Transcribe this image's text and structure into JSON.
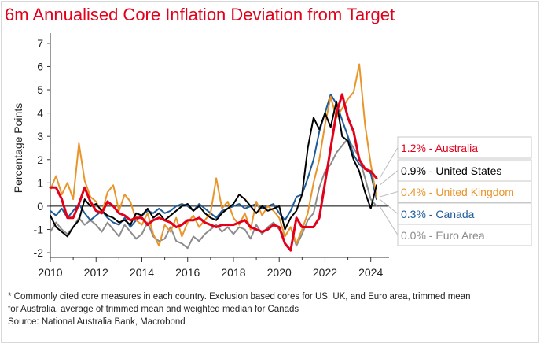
{
  "title": "6m Annualised Core Inflation Deviation from Target",
  "footnotes": {
    "line1": "*  Commonly cited core measures in each country. Exclusion based cores for US, UK, and Euro area, trimmed mean",
    "line2": "for Australia, average of trimmed mean and weighted median for Canads",
    "line3": "Source: National Australia Bank, Macrobond"
  },
  "chart_data": {
    "type": "line",
    "title": "6m Annualised Core Inflation Deviation from Target",
    "xlabel": "",
    "ylabel": "Percentage Points",
    "xlim": [
      2010,
      2024.8
    ],
    "ylim": [
      -2.2,
      7.3
    ],
    "xticks": [
      2010,
      2012,
      2014,
      2016,
      2018,
      2020,
      2022,
      2024
    ],
    "yticks": [
      -2,
      -1,
      0,
      1,
      2,
      3,
      4,
      5,
      6,
      7
    ],
    "grid": false,
    "legend": "right",
    "series": [
      {
        "name": "Euro Area",
        "label": "0.0% - Euro Area",
        "color": "#8c8c8c",
        "x": [
          2010.0,
          2010.25,
          2010.5,
          2010.75,
          2011.0,
          2011.25,
          2011.5,
          2011.75,
          2012.0,
          2012.25,
          2012.5,
          2012.75,
          2013.0,
          2013.25,
          2013.5,
          2013.75,
          2014.0,
          2014.25,
          2014.5,
          2014.75,
          2015.0,
          2015.25,
          2015.5,
          2015.75,
          2016.0,
          2016.25,
          2016.5,
          2016.75,
          2017.0,
          2017.25,
          2017.5,
          2017.75,
          2018.0,
          2018.25,
          2018.5,
          2018.75,
          2019.0,
          2019.25,
          2019.5,
          2019.75,
          2020.0,
          2020.25,
          2020.5,
          2020.75,
          2021.0,
          2021.25,
          2021.5,
          2021.75,
          2022.0,
          2022.25,
          2022.5,
          2022.75,
          2023.0,
          2023.25,
          2023.5,
          2023.75,
          2024.0,
          2024.25
        ],
        "y": [
          -1.1,
          -0.7,
          -1.0,
          -1.2,
          -0.9,
          -0.5,
          -0.8,
          -0.6,
          -0.8,
          -1.1,
          -0.7,
          -1.0,
          -1.3,
          -0.8,
          -1.1,
          -1.4,
          -1.2,
          -0.7,
          -1.3,
          -1.5,
          -1.4,
          -0.9,
          -1.5,
          -1.6,
          -1.8,
          -1.3,
          -1.5,
          -1.2,
          -1.0,
          -0.8,
          -1.1,
          -0.9,
          -1.2,
          -0.9,
          -1.0,
          -1.4,
          -0.8,
          -1.2,
          -0.9,
          -0.7,
          -1.0,
          -1.3,
          -0.9,
          -1.7,
          -1.2,
          -0.6,
          -0.3,
          0.8,
          1.5,
          1.8,
          2.3,
          2.6,
          2.9,
          2.5,
          2.1,
          1.2,
          0.3,
          0.0
        ]
      },
      {
        "name": "Canada",
        "label": "0.3% - Canada",
        "color": "#1f5c99",
        "x": [
          2010.0,
          2010.25,
          2010.5,
          2010.75,
          2011.0,
          2011.25,
          2011.5,
          2011.75,
          2012.0,
          2012.25,
          2012.5,
          2012.75,
          2013.0,
          2013.25,
          2013.5,
          2013.75,
          2014.0,
          2014.25,
          2014.5,
          2014.75,
          2015.0,
          2015.25,
          2015.5,
          2015.75,
          2016.0,
          2016.25,
          2016.5,
          2016.75,
          2017.0,
          2017.25,
          2017.5,
          2017.75,
          2018.0,
          2018.25,
          2018.5,
          2018.75,
          2019.0,
          2019.25,
          2019.5,
          2019.75,
          2020.0,
          2020.25,
          2020.5,
          2020.75,
          2021.0,
          2021.25,
          2021.5,
          2021.75,
          2022.0,
          2022.25,
          2022.5,
          2022.75,
          2023.0,
          2023.25,
          2023.5,
          2023.75,
          2024.0,
          2024.25
        ],
        "y": [
          -0.2,
          -0.4,
          -0.1,
          -0.5,
          -0.2,
          0.1,
          -0.3,
          -0.6,
          -0.4,
          -0.2,
          -0.5,
          -0.7,
          -0.8,
          -0.5,
          -0.9,
          -0.6,
          -0.4,
          -0.2,
          -0.3,
          -0.1,
          -0.3,
          -0.2,
          0.0,
          0.1,
          0.0,
          -0.2,
          0.1,
          -0.1,
          -0.3,
          -0.5,
          -0.2,
          -0.1,
          0.0,
          0.1,
          -0.1,
          0.0,
          0.1,
          -0.1,
          0.0,
          0.1,
          -0.3,
          -0.6,
          -0.2,
          0.4,
          0.5,
          1.2,
          2.0,
          3.2,
          4.0,
          4.8,
          4.4,
          3.7,
          3.0,
          2.2,
          1.8,
          1.6,
          1.4,
          0.3
        ]
      },
      {
        "name": "United Kingdom",
        "label": "0.4% - United Kingdom",
        "color": "#e8952a",
        "x": [
          2010.0,
          2010.25,
          2010.5,
          2010.75,
          2011.0,
          2011.25,
          2011.5,
          2011.75,
          2012.0,
          2012.25,
          2012.5,
          2012.75,
          2013.0,
          2013.25,
          2013.5,
          2013.75,
          2014.0,
          2014.25,
          2014.5,
          2014.75,
          2015.0,
          2015.25,
          2015.5,
          2015.75,
          2016.0,
          2016.25,
          2016.5,
          2016.75,
          2017.0,
          2017.25,
          2017.5,
          2017.75,
          2018.0,
          2018.25,
          2018.5,
          2018.75,
          2019.0,
          2019.25,
          2019.5,
          2019.75,
          2020.0,
          2020.25,
          2020.5,
          2020.75,
          2021.0,
          2021.25,
          2021.5,
          2021.75,
          2022.0,
          2022.25,
          2022.5,
          2022.75,
          2023.0,
          2023.25,
          2023.5,
          2023.75,
          2024.0,
          2024.25
        ],
        "y": [
          0.7,
          1.3,
          0.5,
          1.0,
          0.3,
          2.7,
          1.1,
          0.4,
          0.2,
          -0.3,
          0.6,
          0.9,
          -0.2,
          0.5,
          0.2,
          -0.6,
          -0.8,
          -0.3,
          -1.2,
          -1.7,
          -0.8,
          -1.1,
          -0.5,
          -1.3,
          -0.7,
          -0.4,
          -0.9,
          -0.6,
          -0.3,
          1.2,
          -0.1,
          0.2,
          -0.5,
          -0.8,
          -0.3,
          -1.0,
          0.2,
          -0.4,
          0.0,
          -0.2,
          -0.5,
          -1.3,
          -0.9,
          -1.6,
          -1.0,
          -0.3,
          1.0,
          2.0,
          3.5,
          4.7,
          3.8,
          4.2,
          4.6,
          4.9,
          6.1,
          3.5,
          1.8,
          0.4
        ]
      },
      {
        "name": "United States",
        "label": "0.9% - United States",
        "color": "#000000",
        "x": [
          2010.0,
          2010.25,
          2010.5,
          2010.75,
          2011.0,
          2011.25,
          2011.5,
          2011.75,
          2012.0,
          2012.25,
          2012.5,
          2012.75,
          2013.0,
          2013.25,
          2013.5,
          2013.75,
          2014.0,
          2014.25,
          2014.5,
          2014.75,
          2015.0,
          2015.25,
          2015.5,
          2015.75,
          2016.0,
          2016.25,
          2016.5,
          2016.75,
          2017.0,
          2017.25,
          2017.5,
          2017.75,
          2018.0,
          2018.25,
          2018.5,
          2018.75,
          2019.0,
          2019.25,
          2019.5,
          2019.75,
          2020.0,
          2020.25,
          2020.5,
          2020.75,
          2021.0,
          2021.25,
          2021.5,
          2021.75,
          2022.0,
          2022.25,
          2022.5,
          2022.75,
          2023.0,
          2023.25,
          2023.5,
          2023.75,
          2024.0,
          2024.25
        ],
        "y": [
          -0.4,
          -0.9,
          -1.1,
          -1.3,
          -0.9,
          -0.6,
          0.3,
          0.0,
          0.1,
          -0.2,
          -0.4,
          -0.5,
          -0.7,
          -0.6,
          -0.8,
          -0.3,
          -0.4,
          -0.1,
          -0.5,
          -0.3,
          -0.6,
          -0.4,
          -0.2,
          0.0,
          0.1,
          -0.2,
          0.0,
          -0.3,
          -0.5,
          -0.6,
          -0.3,
          -0.1,
          0.1,
          0.5,
          0.3,
          0.0,
          -0.3,
          0.0,
          -0.2,
          -0.1,
          0.0,
          -1.0,
          -0.5,
          -0.2,
          0.5,
          2.5,
          3.8,
          3.3,
          4.0,
          3.4,
          4.5,
          3.0,
          2.8,
          2.0,
          1.5,
          0.6,
          -0.1,
          0.9
        ]
      },
      {
        "name": "Australia",
        "label": "1.2% - Australia",
        "color": "#e2001a",
        "x": [
          2010.0,
          2010.25,
          2010.5,
          2010.75,
          2011.0,
          2011.25,
          2011.5,
          2011.75,
          2012.0,
          2012.25,
          2012.5,
          2012.75,
          2013.0,
          2013.25,
          2013.5,
          2013.75,
          2014.0,
          2014.25,
          2014.5,
          2014.75,
          2015.0,
          2015.25,
          2015.5,
          2015.75,
          2016.0,
          2016.25,
          2016.5,
          2016.75,
          2017.0,
          2017.25,
          2017.5,
          2017.75,
          2018.0,
          2018.25,
          2018.5,
          2018.75,
          2019.0,
          2019.25,
          2019.5,
          2019.75,
          2020.0,
          2020.25,
          2020.5,
          2020.75,
          2021.0,
          2021.25,
          2021.5,
          2021.75,
          2022.0,
          2022.25,
          2022.5,
          2022.75,
          2023.0,
          2023.25,
          2023.5,
          2023.75,
          2024.0,
          2024.25
        ],
        "y": [
          0.8,
          0.8,
          0.3,
          -0.5,
          -0.5,
          0.1,
          0.8,
          0.2,
          -0.2,
          -0.3,
          0.2,
          0.0,
          -0.3,
          -0.4,
          -0.6,
          -0.5,
          -0.5,
          -0.8,
          -0.6,
          -0.5,
          -0.6,
          -0.7,
          -0.9,
          -0.8,
          -0.6,
          -0.6,
          -0.5,
          -0.7,
          -0.8,
          -0.9,
          -0.8,
          -0.8,
          -0.8,
          -0.7,
          -0.6,
          -0.9,
          -1.0,
          -1.1,
          -1.0,
          -0.8,
          -0.9,
          -1.6,
          -1.9,
          -0.5,
          -0.9,
          -0.9,
          -0.9,
          -0.5,
          1.0,
          2.5,
          4.0,
          4.8,
          3.8,
          3.2,
          2.0,
          1.6,
          1.5,
          1.2
        ]
      }
    ]
  }
}
